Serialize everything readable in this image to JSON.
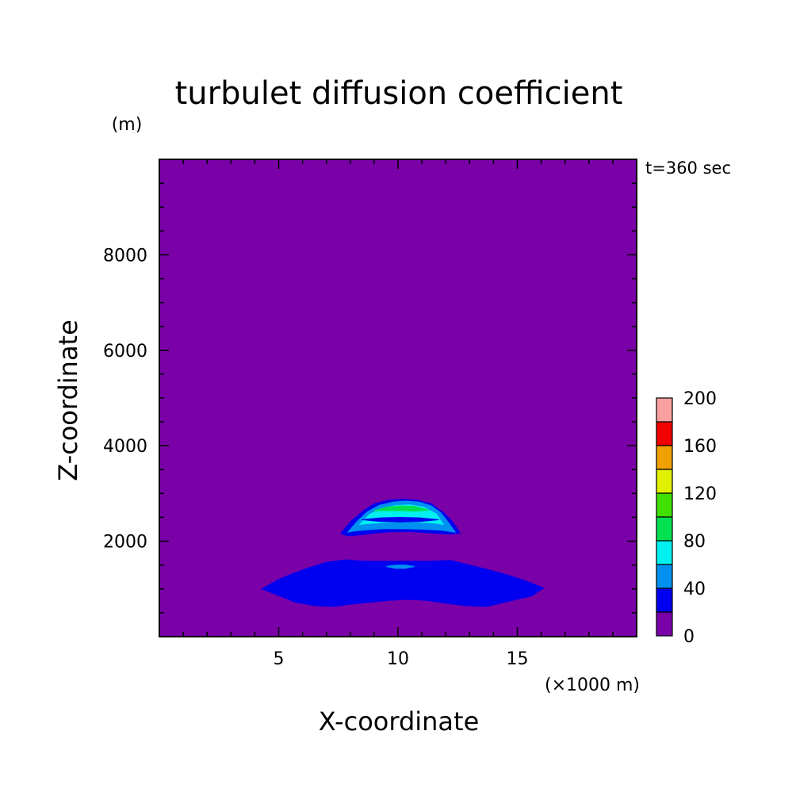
{
  "chart_data": {
    "type": "heatmap",
    "title": "turbulet diffusion coefficient",
    "xlabel": "X-coordinate",
    "ylabel": "Z-coordinate",
    "x_unit": "(×1000 m)",
    "y_unit": "(m)",
    "time_label": "t=360 sec",
    "xlim": [
      0,
      20
    ],
    "ylim": [
      0,
      10000
    ],
    "x_ticks": [
      5,
      10,
      15
    ],
    "y_ticks": [
      2000,
      4000,
      6000,
      8000
    ],
    "grid": false,
    "legend": "right",
    "colorbar": {
      "levels": [
        0,
        20,
        40,
        60,
        80,
        100,
        120,
        140,
        160,
        180,
        200
      ],
      "labels": [
        0,
        40,
        80,
        120,
        160,
        200
      ],
      "colors": [
        "#7a00a8",
        "#0000f0",
        "#0090f0",
        "#00f0f0",
        "#00e050",
        "#40e000",
        "#e0f000",
        "#f0a000",
        "#f00000",
        "#f8a0a0"
      ]
    },
    "contours": [
      {
        "level": 20,
        "x": [
          4.3,
          5.0,
          5.6,
          6.2,
          7.0,
          7.8,
          8.6,
          9.6,
          10.4,
          11.4,
          12.2,
          13.0,
          13.8,
          14.6,
          15.4,
          16.1,
          15.6,
          14.7,
          13.7,
          12.8,
          12.0,
          11.2,
          10.4,
          9.6,
          8.8,
          8.0,
          7.3,
          6.5,
          5.7,
          5.0,
          4.3
        ],
        "z": [
          1000,
          1200,
          1320,
          1430,
          1560,
          1610,
          1580,
          1580,
          1580,
          1580,
          1600,
          1500,
          1400,
          1290,
          1160,
          1020,
          850,
          750,
          630,
          650,
          700,
          760,
          780,
          760,
          720,
          680,
          630,
          650,
          720,
          860,
          1000
        ]
      },
      {
        "level": 40,
        "x": [
          9.5,
          9.9,
          10.3,
          10.7,
          10.3,
          9.9,
          9.5
        ],
        "z": [
          1470,
          1430,
          1430,
          1470,
          1500,
          1500,
          1470
        ]
      },
      {
        "level": 20,
        "x": [
          7.6,
          8.0,
          8.5,
          9.0,
          9.6,
          10.2,
          10.8,
          11.4,
          11.9,
          12.3,
          12.6,
          12.2,
          11.4,
          10.6,
          9.8,
          9.0,
          8.4,
          7.9,
          7.6
        ],
        "z": [
          2160,
          2400,
          2620,
          2780,
          2860,
          2880,
          2860,
          2780,
          2600,
          2400,
          2170,
          2150,
          2170,
          2200,
          2200,
          2170,
          2130,
          2110,
          2160
        ]
      },
      {
        "level": 40,
        "x": [
          7.9,
          8.3,
          8.7,
          9.2,
          9.8,
          10.3,
          10.9,
          11.4,
          11.8,
          12.1,
          12.4,
          11.8,
          11.0,
          10.2,
          9.4,
          8.7,
          8.1,
          7.9
        ],
        "z": [
          2190,
          2420,
          2610,
          2750,
          2820,
          2840,
          2820,
          2740,
          2590,
          2400,
          2190,
          2230,
          2250,
          2260,
          2260,
          2240,
          2210,
          2190
        ]
      },
      {
        "level": 60,
        "x": [
          8.4,
          8.8,
          9.3,
          9.9,
          10.5,
          11.1,
          11.6,
          11.9,
          11.5,
          10.8,
          10.1,
          9.4,
          8.8,
          8.4
        ],
        "z": [
          2350,
          2560,
          2680,
          2750,
          2760,
          2710,
          2570,
          2350,
          2380,
          2400,
          2400,
          2390,
          2370,
          2350
        ]
      },
      {
        "level": 80,
        "x": [
          9.0,
          9.5,
          10.1,
          10.7,
          11.3,
          10.7,
          10.1,
          9.5,
          9.0
        ],
        "z": [
          2640,
          2710,
          2740,
          2730,
          2650,
          2630,
          2640,
          2640,
          2640
        ]
      },
      {
        "level": 20,
        "x": [
          8.5,
          9.3,
          10.1,
          10.9,
          11.7,
          10.9,
          10.1,
          9.3,
          8.5
        ],
        "z": [
          2450,
          2490,
          2500,
          2490,
          2450,
          2410,
          2400,
          2410,
          2450
        ]
      }
    ]
  }
}
